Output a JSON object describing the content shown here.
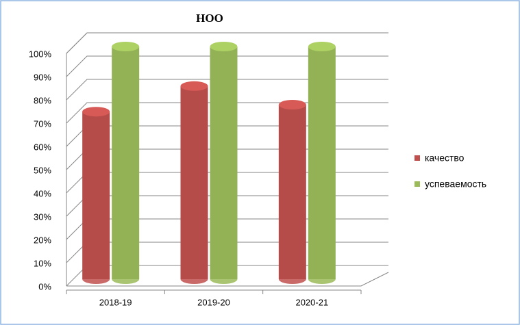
{
  "chart_data": {
    "type": "bar3d",
    "title": "НОО",
    "categories": [
      "2018-19",
      "2019-20",
      "2020-21"
    ],
    "series": [
      {
        "name": "качество",
        "color": "#c0504d",
        "values": [
          72,
          83,
          75
        ]
      },
      {
        "name": "успеваемость",
        "color": "#9bbb59",
        "values": [
          100,
          100,
          100
        ]
      }
    ],
    "ylim": [
      0,
      100
    ],
    "yticks": [
      {
        "value": 0,
        "label": "0%"
      },
      {
        "value": 10,
        "label": "10%"
      },
      {
        "value": 20,
        "label": "20%"
      },
      {
        "value": 30,
        "label": "30%"
      },
      {
        "value": 40,
        "label": "40%"
      },
      {
        "value": 50,
        "label": "50%"
      },
      {
        "value": 60,
        "label": "60%"
      },
      {
        "value": 70,
        "label": "70%"
      },
      {
        "value": 80,
        "label": "80%"
      },
      {
        "value": 90,
        "label": "90%"
      },
      {
        "value": 100,
        "label": "100%"
      }
    ],
    "grid": true,
    "legend": "right"
  }
}
